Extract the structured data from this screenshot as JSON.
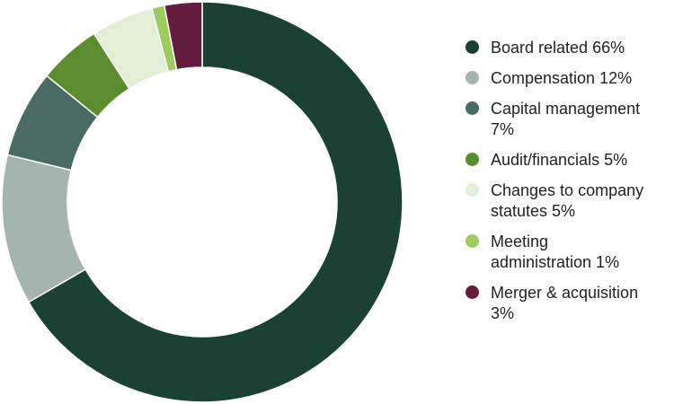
{
  "chart_data": {
    "type": "pie",
    "donut": true,
    "legend_position": "right",
    "series": [
      {
        "name": "Board related 66%",
        "label_lines": [
          "Board related 66%"
        ],
        "value": 66,
        "color": "#1b4135"
      },
      {
        "name": "Compensation  12%",
        "label_lines": [
          "Compensation  12%"
        ],
        "value": 12,
        "color": "#a6b4af"
      },
      {
        "name": "Capital management 7%",
        "label_lines": [
          "Capital management",
          "7%"
        ],
        "value": 7,
        "color": "#4a6b63"
      },
      {
        "name": "Audit/financials 5%",
        "label_lines": [
          "Audit/financials 5%"
        ],
        "value": 5,
        "color": "#5b8c2d"
      },
      {
        "name": "Changes to company statutes 5%",
        "label_lines": [
          "Changes to company",
          "statutes 5%"
        ],
        "value": 5,
        "color": "#e3eed6"
      },
      {
        "name": "Meeting administration 1%",
        "label_lines": [
          "Meeting",
          "administration 1%"
        ],
        "value": 1,
        "color": "#9dcb5e"
      },
      {
        "name": "Merger & acquisition 3%",
        "label_lines": [
          "Merger & acquisition",
          "3%"
        ],
        "value": 3,
        "color": "#641d3e"
      }
    ]
  }
}
